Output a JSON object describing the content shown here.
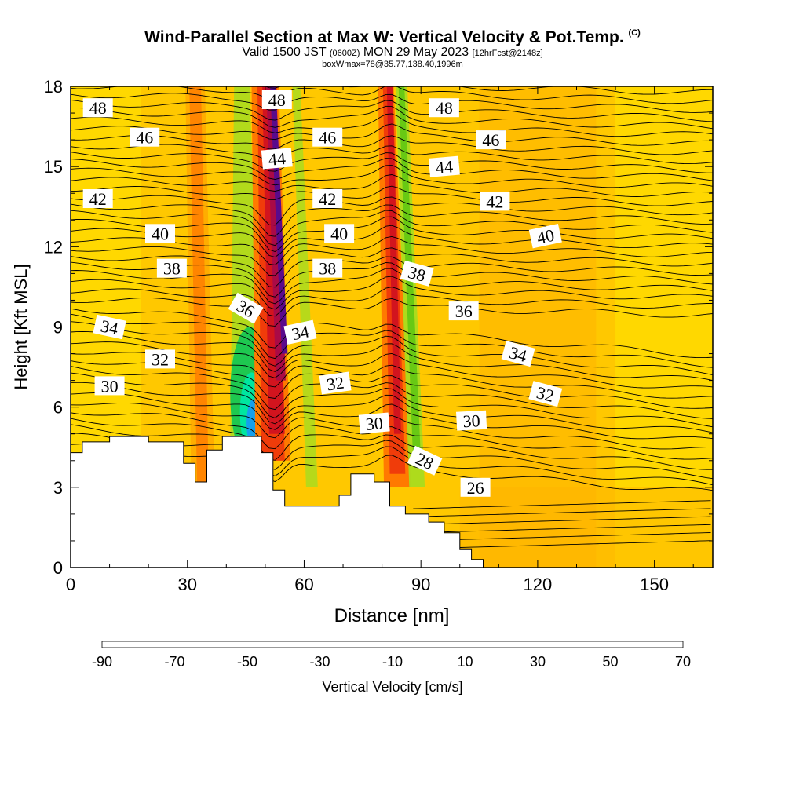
{
  "chart_data": {
    "type": "heatmap",
    "title": "Wind-Parallel Section at Max W: Vertical Velocity & Pot.Temp.",
    "title_mark": "(C)",
    "subtitle_left": "Valid 1500 JST",
    "subtitle_utc": "(0600Z)",
    "subtitle_right": "MON 29 May 2023",
    "subtitle_fcst": "[12hrFcst@2148z]",
    "subtitle2": "boxWmax=78@35.77,138.40,1996m",
    "xlabel": "Distance [nm]",
    "ylabel": "Height [Kft MSL]",
    "xlim": [
      0,
      165
    ],
    "ylim": [
      0,
      18
    ],
    "x_ticks": [
      "0",
      "30",
      "60",
      "90",
      "120",
      "150"
    ],
    "y_ticks": [
      "0",
      "3",
      "6",
      "9",
      "12",
      "15",
      "18"
    ],
    "colorbar": {
      "label": "Vertical Velocity [cm/s]",
      "tick_labels": [
        "-90",
        "-70",
        "-50",
        "-30",
        "-10",
        "10",
        "30",
        "50",
        "70"
      ],
      "colors": [
        "#0a32e6",
        "#1e6ee6",
        "#14a0ee",
        "#14d2dc",
        "#00e6a0",
        "#1ec850",
        "#14aa14",
        "#64c814",
        "#aadc1e",
        "#eaf000",
        "#ffe600",
        "#ffc800",
        "#ffaa00",
        "#ff7a00",
        "#f03c0a",
        "#d2141e",
        "#aa0a46",
        "#8c0a6e",
        "#5a0a8c"
      ]
    },
    "shading": {
      "background_value": 5,
      "updrafts": [
        {
          "x_center": 51,
          "peak_value": 70,
          "note": "strong updraft core"
        },
        {
          "x_center": 82,
          "peak_value": 40
        },
        {
          "x_center": 33,
          "peak_value": 20
        }
      ],
      "downdrafts": [
        {
          "x_center": 46,
          "peak_value": -60,
          "height_kft": 5.5
        },
        {
          "x_center": 87,
          "peak_value": -20
        }
      ]
    },
    "isentrope_labels": [
      {
        "text": "48",
        "x": 7,
        "y": 17.2,
        "rot": 0
      },
      {
        "text": "46",
        "x": 19,
        "y": 16.1,
        "rot": 0
      },
      {
        "text": "48",
        "x": 53,
        "y": 17.5,
        "rot": 0
      },
      {
        "text": "46",
        "x": 66,
        "y": 16.1,
        "rot": 0
      },
      {
        "text": "48",
        "x": 96,
        "y": 17.2,
        "rot": 0
      },
      {
        "text": "46",
        "x": 108,
        "y": 16.0,
        "rot": 0
      },
      {
        "text": "44",
        "x": 53,
        "y": 15.3,
        "rot": -5
      },
      {
        "text": "44",
        "x": 96,
        "y": 15.0,
        "rot": -5
      },
      {
        "text": "42",
        "x": 7,
        "y": 13.8,
        "rot": 0
      },
      {
        "text": "42",
        "x": 66,
        "y": 13.8,
        "rot": 0
      },
      {
        "text": "42",
        "x": 109,
        "y": 13.7,
        "rot": 0
      },
      {
        "text": "40",
        "x": 23,
        "y": 12.5,
        "rot": 0
      },
      {
        "text": "40",
        "x": 69,
        "y": 12.5,
        "rot": 0
      },
      {
        "text": "40",
        "x": 122,
        "y": 12.4,
        "rot": -12
      },
      {
        "text": "38",
        "x": 26,
        "y": 11.2,
        "rot": 0
      },
      {
        "text": "38",
        "x": 66,
        "y": 11.2,
        "rot": 0
      },
      {
        "text": "38",
        "x": 89,
        "y": 11.0,
        "rot": 15
      },
      {
        "text": "36",
        "x": 45,
        "y": 9.7,
        "rot": 30
      },
      {
        "text": "36",
        "x": 101,
        "y": 9.6,
        "rot": 0
      },
      {
        "text": "34",
        "x": 10,
        "y": 9.0,
        "rot": 12
      },
      {
        "text": "34",
        "x": 59,
        "y": 8.8,
        "rot": -12
      },
      {
        "text": "34",
        "x": 115,
        "y": 8.0,
        "rot": 15
      },
      {
        "text": "32",
        "x": 23,
        "y": 7.8,
        "rot": 0
      },
      {
        "text": "32",
        "x": 68,
        "y": 6.9,
        "rot": -8
      },
      {
        "text": "32",
        "x": 122,
        "y": 6.5,
        "rot": 15
      },
      {
        "text": "30",
        "x": 10,
        "y": 6.8,
        "rot": 0
      },
      {
        "text": "30",
        "x": 78,
        "y": 5.4,
        "rot": -5
      },
      {
        "text": "30",
        "x": 103,
        "y": 5.5,
        "rot": -3
      },
      {
        "text": "28",
        "x": 91,
        "y": 4.0,
        "rot": 25
      },
      {
        "text": "26",
        "x": 104,
        "y": 3.0,
        "rot": 0
      }
    ],
    "terrain_steps": [
      [
        0,
        4.3
      ],
      [
        3,
        4.3
      ],
      [
        3,
        4.7
      ],
      [
        10,
        4.7
      ],
      [
        10,
        4.9
      ],
      [
        20,
        4.9
      ],
      [
        20,
        4.7
      ],
      [
        29,
        4.7
      ],
      [
        29,
        3.9
      ],
      [
        32,
        3.9
      ],
      [
        32,
        3.2
      ],
      [
        35,
        3.2
      ],
      [
        35,
        4.4
      ],
      [
        39,
        4.4
      ],
      [
        39,
        4.9
      ],
      [
        49,
        4.9
      ],
      [
        49,
        4.3
      ],
      [
        52,
        4.3
      ],
      [
        52,
        2.9
      ],
      [
        55,
        2.9
      ],
      [
        55,
        2.3
      ],
      [
        69,
        2.3
      ],
      [
        69,
        2.7
      ],
      [
        72,
        2.7
      ],
      [
        72,
        3.5
      ],
      [
        78,
        3.5
      ],
      [
        78,
        3.2
      ],
      [
        82,
        3.2
      ],
      [
        82,
        2.3
      ],
      [
        86,
        2.3
      ],
      [
        86,
        2.0
      ],
      [
        92,
        2.0
      ],
      [
        92,
        1.7
      ],
      [
        96,
        1.7
      ],
      [
        96,
        1.3
      ],
      [
        100,
        1.3
      ],
      [
        100,
        0.7
      ],
      [
        103,
        0.7
      ],
      [
        103,
        0.3
      ],
      [
        106,
        0.3
      ],
      [
        106,
        0
      ]
    ]
  }
}
